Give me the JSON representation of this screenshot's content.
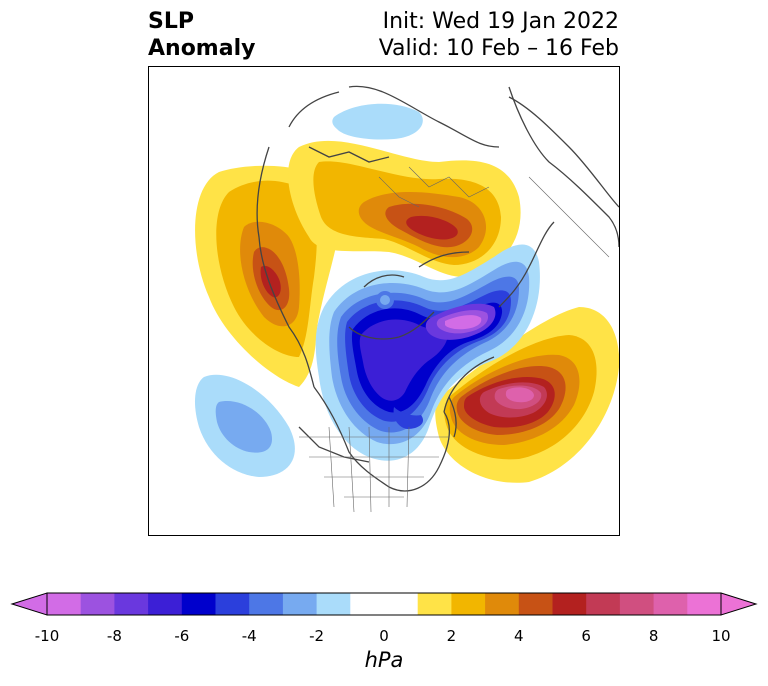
{
  "title": {
    "left_line1": "SLP",
    "left_line2": "Anomaly",
    "right_line1": "Init: Wed 19 Jan 2022",
    "right_line2": "Valid: 10 Feb – 16 Feb"
  },
  "colorbar": {
    "units": "hPa",
    "ticks": [
      "-10",
      "-8",
      "-6",
      "-4",
      "-2",
      "0",
      "2",
      "4",
      "6",
      "8",
      "10"
    ],
    "colors": [
      "#d26ce6",
      "#9c52e0",
      "#6a38de",
      "#3c1fd6",
      "#0000cc",
      "#2b3fdc",
      "#4d77e6",
      "#77aaf0",
      "#aadcfa",
      "#ffffff",
      "#ffffff",
      "#ffe347",
      "#f2b600",
      "#e08a0a",
      "#c75215",
      "#b3211f",
      "#c23a55",
      "#d04f80",
      "#de61ac",
      "#ec72d6"
    ],
    "extend_low_color": "#d26ce6",
    "extend_high_color": "#ec72d6"
  },
  "map": {
    "projection": "polar-stereographic",
    "variable": "sea-level pressure anomaly"
  }
}
